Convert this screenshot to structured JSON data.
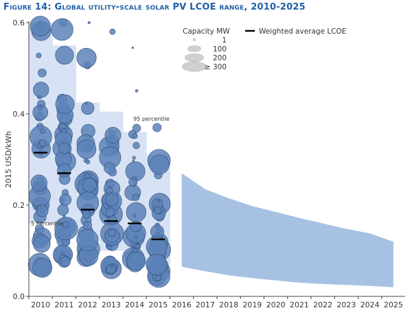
{
  "chart_data": {
    "type": "scatter",
    "title": "Figure 14: Global utility-scale solar PV LCOE range, 2010-2025",
    "ylabel": "2015 USD/kWh",
    "xlabel": "",
    "ylim": [
      0,
      0.6
    ],
    "yticks": [
      "0.0",
      "0.2",
      "0.4",
      "0.6"
    ],
    "ytick_values": [
      0.0,
      0.2,
      0.4,
      0.6
    ],
    "years": [
      "2010",
      "2011",
      "2012",
      "2013",
      "2014",
      "2015",
      "2016",
      "2017",
      "2018",
      "2019",
      "2020",
      "2021",
      "2022",
      "2023",
      "2024",
      "2025"
    ],
    "historical": {
      "years": [
        "2010",
        "2011",
        "2012",
        "2013",
        "2014",
        "2015"
      ],
      "p95": [
        0.6,
        0.55,
        0.425,
        0.405,
        0.36,
        0.31
      ],
      "p5": [
        0.16,
        0.16,
        0.12,
        0.1,
        0.08,
        0.07
      ],
      "weighted_average": [
        0.315,
        0.27,
        0.19,
        0.165,
        0.16,
        0.125
      ],
      "projects_min": [
        0.055,
        0.075,
        0.085,
        0.055,
        0.07,
        0.04
      ],
      "projects_max": [
        0.6,
        0.6,
        0.6,
        0.58,
        0.545,
        0.37
      ]
    },
    "projection": {
      "years": [
        "2016",
        "2017",
        "2018",
        "2019",
        "2020",
        "2021",
        "2022",
        "2023",
        "2024",
        "2025"
      ],
      "upper": [
        0.27,
        0.235,
        0.215,
        0.198,
        0.185,
        0.172,
        0.16,
        0.148,
        0.138,
        0.12
      ],
      "lower": [
        0.065,
        0.055,
        0.046,
        0.04,
        0.035,
        0.03,
        0.027,
        0.025,
        0.023,
        0.02
      ]
    },
    "annotations": [
      "95 percentile",
      "5 Percentile"
    ],
    "legend": {
      "capacity_title": "Capacity MW",
      "capacity_labels": [
        "1",
        "100",
        "200",
        "≥ 300"
      ],
      "line_label": "Weighted average LCOE",
      "position": "top-center"
    },
    "colors": {
      "bubble_fill": "#5d82b8",
      "bubble_stroke": "#2e4d78",
      "band_fill": "#d7e3f4",
      "projection_fill": "#a7c1e3",
      "weighted_line": "#000000",
      "title": "#1f5fa8"
    }
  }
}
